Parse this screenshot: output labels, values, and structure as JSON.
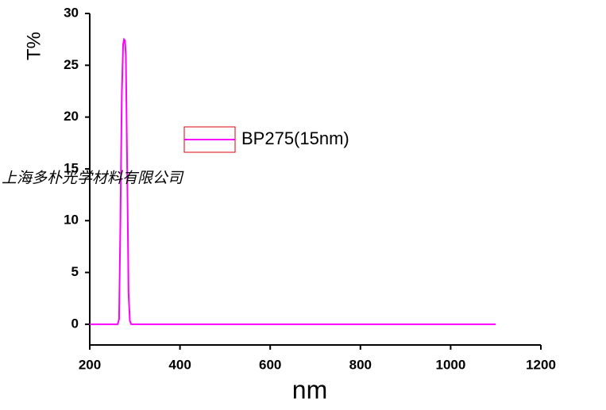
{
  "chart_data": {
    "type": "line",
    "x_label": "nm",
    "y_label": "T%",
    "watermark": "上海多朴光学材料有限公司",
    "x": [
      200,
      262,
      265,
      268,
      271,
      274,
      276,
      278,
      280,
      283,
      286,
      289,
      292,
      1100
    ],
    "series": [
      {
        "name": "BP275(15nm)",
        "color": "#ff00ff",
        "values": [
          0,
          0,
          0.5,
          10,
          22,
          27,
          27.5,
          27.4,
          26,
          15,
          3,
          0.3,
          0,
          0
        ]
      }
    ],
    "xlim": [
      200,
      1200
    ],
    "xticks": [
      200,
      400,
      600,
      800,
      1000,
      1200
    ],
    "ylim": [
      -2,
      30
    ],
    "yticks": [
      0,
      5,
      10,
      15,
      20,
      25,
      30
    ],
    "legend_position": "upper-center"
  }
}
